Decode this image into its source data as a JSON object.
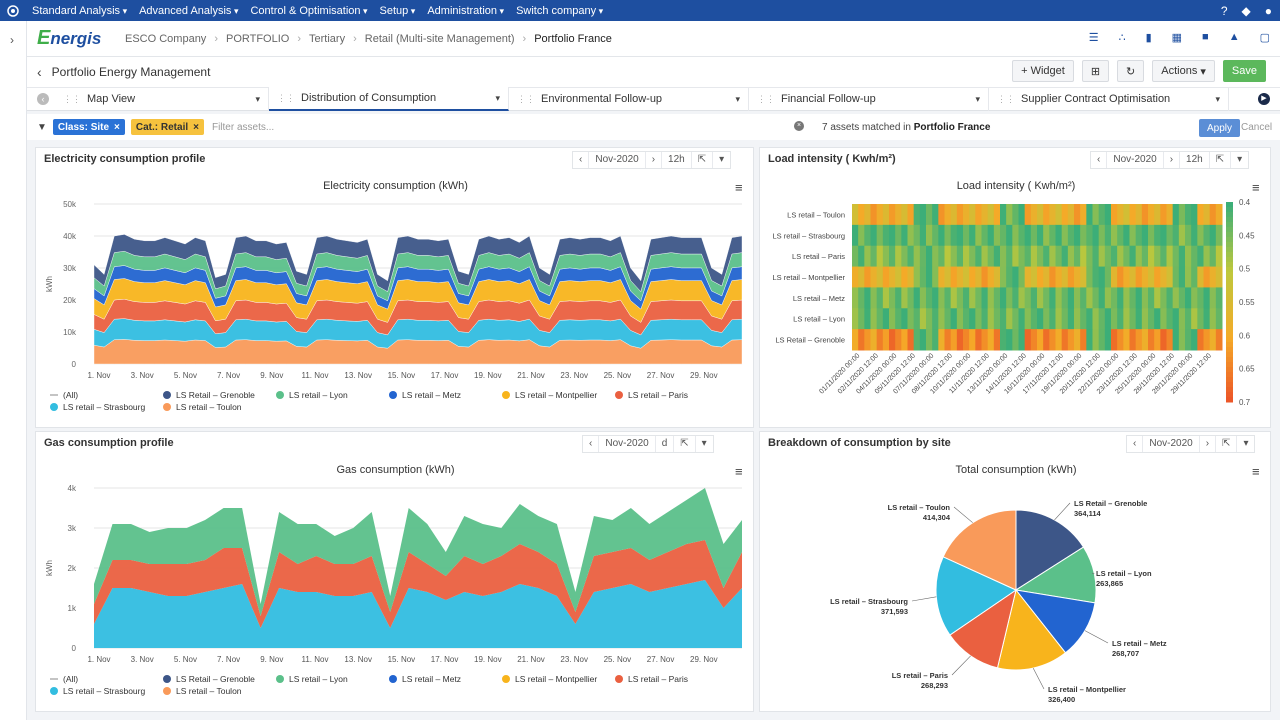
{
  "topnav": {
    "menus": [
      "Standard Analysis",
      "Advanced Analysis",
      "Control & Optimisation",
      "Setup",
      "Administration",
      "Switch company"
    ]
  },
  "breadcrumb": {
    "brand": "Energis",
    "items": [
      "ESCO Company",
      "PORTFOLIO",
      "Tertiary",
      "Retail (Multi-site Management)"
    ],
    "current": "Portfolio France"
  },
  "page": {
    "title": "Portfolio Energy Management",
    "widget_label": "+ Widget",
    "actions_label": "Actions",
    "save_label": "Save"
  },
  "tabs": [
    "Map View",
    "Distribution of Consumption",
    "Environmental Follow-up",
    "Financial Follow-up",
    "Supplier Contract Optimisation"
  ],
  "filters": {
    "chips": [
      "Class: Site",
      "Cat.: Retail"
    ],
    "placeholder": "Filter assets...",
    "match_prefix": "7 assets matched in",
    "match_target": "Portfolio France",
    "apply_label": "Apply",
    "cancel_label": "Cancel"
  },
  "widgets": {
    "elec": {
      "title": "Electricity consumption profile",
      "period": "Nov-2020",
      "interval": "12h"
    },
    "load": {
      "title": "Load intensity ( Kwh/m²)",
      "period": "Nov-2020",
      "interval": "12h"
    },
    "gas": {
      "title": "Gas consumption profile",
      "period": "Nov-2020",
      "interval": "d"
    },
    "breakdown": {
      "title": "Breakdown of consumption by site",
      "period": "Nov-2020"
    }
  },
  "colors": {
    "Grenoble": "#3d5688",
    "Lyon": "#5bc08a",
    "Metz": "#2264d0",
    "Montpellier": "#f8b41c",
    "Paris": "#ea6040",
    "Strasbourg": "#32bde0",
    "Toulon": "#f99a5a"
  },
  "legend_labels": {
    "all": "(All)",
    "grenoble": "LS Retail – Grenoble",
    "lyon": "LS retail – Lyon",
    "metz": "LS retail – Metz",
    "montpellier": "LS retail – Montpellier",
    "paris": "LS retail – Paris",
    "strasbourg": "LS retail – Strasbourg",
    "toulon": "LS retail – Toulon"
  },
  "chart_data": [
    {
      "type": "area",
      "title": "Electricity consumption (kWh)",
      "ylabel": "kWh",
      "ylim": [
        0,
        50000
      ],
      "yticks": [
        "0",
        "10k",
        "20k",
        "30k",
        "40k",
        "50k"
      ],
      "xticks": [
        "1. Nov",
        "3. Nov",
        "5. Nov",
        "7. Nov",
        "9. Nov",
        "11. Nov",
        "13. Nov",
        "15. Nov",
        "17. Nov",
        "19. Nov",
        "21. Nov",
        "23. Nov",
        "25. Nov",
        "27. Nov",
        "29. Nov"
      ],
      "stacked": true,
      "series_order": [
        "LS retail – Toulon",
        "LS retail – Strasbourg",
        "LS retail – Paris",
        "LS retail – Montpellier",
        "LS retail – Metz",
        "LS retail – Lyon",
        "LS Retail – Grenoble"
      ],
      "totals": [
        31000,
        28000,
        40000,
        40500,
        39000,
        38500,
        38500,
        39500,
        38500,
        37500,
        39500,
        38500,
        27000,
        28000,
        39500,
        40000,
        38500,
        38500,
        37500,
        38000,
        29000,
        28000,
        39500,
        40000,
        39000,
        38500,
        38000,
        39000,
        28000,
        26000,
        39500,
        40000,
        39000,
        39000,
        38500,
        39000,
        29000,
        28000,
        39000,
        40000,
        39000,
        39500,
        38000,
        40000,
        30000,
        28000,
        39000,
        39500,
        39000,
        39500,
        39500,
        38500,
        40000,
        30000,
        26000,
        39000,
        39500,
        40000,
        39500,
        39500,
        39500,
        30000,
        28000,
        39500,
        40000
      ],
      "shares": [
        0.19,
        0.16,
        0.15,
        0.16,
        0.1,
        0.11,
        0.13
      ]
    },
    {
      "type": "heatmap",
      "title": "Load intensity ( Kwh/m²)",
      "rows": [
        "LS retail – Toulon",
        "LS retail – Strasbourg",
        "LS retail – Paris",
        "LS retail – Montpellier",
        "LS retail – Metz",
        "LS retail – Lyon",
        "LS Retail – Grenoble"
      ],
      "xticks": [
        "01/11/2020 00:00",
        "02/11/2020 12:00",
        "04/11/2020 00:00",
        "05/11/2020 12:00",
        "07/11/2020 00:00",
        "08/11/2020 12:00",
        "10/11/2020 00:00",
        "11/11/2020 12:00",
        "13/11/2020 00:00",
        "14/11/2020 12:00",
        "16/11/2020 00:00",
        "17/11/2020 12:00",
        "19/11/2020 00:00",
        "20/11/2020 12:00",
        "22/11/2020 00:00",
        "23/11/2020 12:00",
        "25/11/2020 00:00",
        "26/11/2020 12:00",
        "28/11/2020 00:00",
        "29/11/2020 12:00"
      ],
      "color_scale": [
        "0.4",
        "0.45",
        "0.5",
        "0.55",
        "0.6",
        "0.65",
        "0.7"
      ],
      "row_levels": [
        0.58,
        0.42,
        0.45,
        0.58,
        0.44,
        0.43,
        0.63
      ]
    },
    {
      "type": "area",
      "title": "Gas consumption (kWh)",
      "ylabel": "kWh",
      "ylim": [
        0,
        4000
      ],
      "yticks": [
        "0",
        "1k",
        "2k",
        "3k",
        "4k"
      ],
      "xticks": [
        "1. Nov",
        "3. Nov",
        "5. Nov",
        "7. Nov",
        "9. Nov",
        "11. Nov",
        "13. Nov",
        "15. Nov",
        "17. Nov",
        "19. Nov",
        "21. Nov",
        "23. Nov",
        "25. Nov",
        "27. Nov",
        "29. Nov"
      ],
      "series": [
        {
          "name": "LS retail – Strasbourg",
          "values": [
            600,
            1500,
            1500,
            1400,
            1300,
            1300,
            1400,
            1500,
            1600,
            500,
            1500,
            1400,
            1400,
            1300,
            1300,
            1400,
            500,
            1500,
            1400,
            1200,
            1400,
            1300,
            1400,
            1600,
            1500,
            1300,
            600,
            1400,
            1500,
            1600,
            1400,
            1500,
            1600,
            1700,
            1000,
            1500
          ]
        },
        {
          "name": "LS retail – Paris",
          "values": [
            500,
            700,
            700,
            700,
            800,
            800,
            800,
            1000,
            900,
            300,
            900,
            700,
            900,
            800,
            800,
            900,
            400,
            900,
            700,
            600,
            900,
            800,
            900,
            1000,
            900,
            800,
            300,
            900,
            900,
            900,
            800,
            900,
            1000,
            1000,
            500,
            900
          ]
        },
        {
          "name": "LS retail – Lyon",
          "values": [
            500,
            900,
            900,
            800,
            900,
            900,
            1000,
            1000,
            1000,
            300,
            1000,
            1000,
            800,
            700,
            900,
            1100,
            400,
            1100,
            1000,
            600,
            1000,
            1000,
            700,
            1000,
            900,
            1000,
            500,
            1000,
            800,
            1000,
            900,
            1000,
            1100,
            1300,
            1100,
            800
          ]
        }
      ]
    },
    {
      "type": "pie",
      "title": "Total consumption (kWh)",
      "labels": [
        "LS Retail – Grenoble",
        "LS retail – Lyon",
        "LS retail – Metz",
        "LS retail – Montpellier",
        "LS retail – Paris",
        "LS retail – Strasbourg",
        "LS retail – Toulon"
      ],
      "values": [
        364114,
        263865,
        268707,
        326400,
        268293,
        371593,
        414304
      ],
      "value_labels": [
        "364,114",
        "263,865",
        "268,707",
        "326,400",
        "268,293",
        "371,593",
        "414,304"
      ]
    }
  ]
}
